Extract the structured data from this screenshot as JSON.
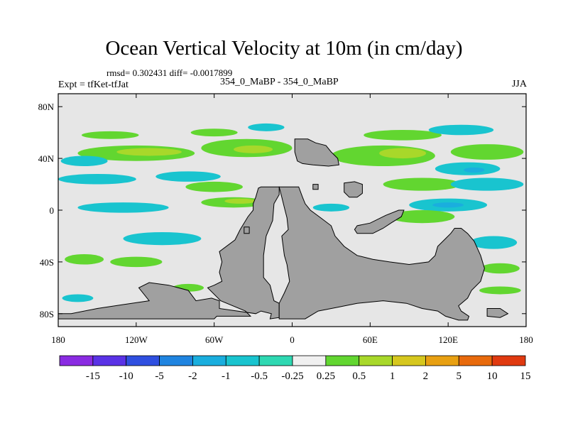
{
  "title": "Ocean Vertical Velocity at 10m (in cm/day)",
  "stats": "rmsd= 0.302431  diff= -0.0017899",
  "left_label": "Expt = tfKet-tfJat",
  "center_label": "354_0_MaBP - 354_0_MaBP",
  "right_label": "JJA",
  "colors": {
    "land": "#a0a0a0",
    "ocean_neutral": "#e6e6e6",
    "map_border": "#000000"
  },
  "map_data": {
    "lon_range": [
      -180,
      180
    ],
    "lat_range": [
      -90,
      90
    ],
    "x_ticks": [
      {
        "value": -180,
        "label": "180"
      },
      {
        "value": -120,
        "label": "120W"
      },
      {
        "value": -60,
        "label": "60W"
      },
      {
        "value": 0,
        "label": "0"
      },
      {
        "value": 60,
        "label": "60E"
      },
      {
        "value": 120,
        "label": "120E"
      },
      {
        "value": 180,
        "label": "180"
      }
    ],
    "y_ticks": [
      {
        "value": 80,
        "label": "80N"
      },
      {
        "value": 40,
        "label": "40N"
      },
      {
        "value": 0,
        "label": "0"
      },
      {
        "value": -40,
        "label": "40S"
      },
      {
        "value": -80,
        "label": "80S"
      }
    ],
    "land": [
      {
        "name": "continent-americas",
        "points": [
          [
            -26,
            17
          ],
          [
            -24,
            18
          ],
          [
            -10,
            18
          ],
          [
            -10,
            12
          ],
          [
            -14,
            5
          ],
          [
            -15,
            -8
          ],
          [
            -20,
            -20
          ],
          [
            -22,
            -35
          ],
          [
            -22,
            -52
          ],
          [
            -17,
            -58
          ],
          [
            -16,
            -62
          ],
          [
            -14,
            -70
          ],
          [
            -10,
            -72
          ],
          [
            -10,
            -83
          ],
          [
            -17,
            -84
          ],
          [
            -16,
            -80
          ],
          [
            -24,
            -78
          ],
          [
            -28,
            -80
          ],
          [
            -56,
            -76
          ],
          [
            -56,
            -70
          ],
          [
            -62,
            -68
          ],
          [
            -74,
            -70
          ],
          [
            -80,
            -62
          ],
          [
            -95,
            -58
          ],
          [
            -110,
            -56
          ],
          [
            -118,
            -60
          ],
          [
            -110,
            -70
          ],
          [
            -130,
            -73
          ],
          [
            -150,
            -76
          ],
          [
            -170,
            -80
          ],
          [
            -180,
            -80
          ],
          [
            -180,
            -84
          ],
          [
            -60,
            -84
          ],
          [
            -58,
            -82
          ],
          [
            -32,
            -82
          ],
          [
            -36,
            -78
          ],
          [
            -55,
            -70
          ],
          [
            -65,
            -60
          ],
          [
            -60,
            -58
          ],
          [
            -54,
            -55
          ],
          [
            -56,
            -48
          ],
          [
            -54,
            -40
          ],
          [
            -56,
            -32
          ],
          [
            -44,
            -23
          ],
          [
            -40,
            -15
          ],
          [
            -34,
            -5
          ],
          [
            -30,
            0
          ],
          [
            -30,
            5
          ],
          [
            -28,
            10
          ]
        ]
      },
      {
        "name": "continent-africa-asia",
        "points": [
          [
            -10,
            18
          ],
          [
            5,
            18
          ],
          [
            8,
            10
          ],
          [
            10,
            5
          ],
          [
            14,
            0
          ],
          [
            22,
            -6
          ],
          [
            30,
            -12
          ],
          [
            33,
            -20
          ],
          [
            40,
            -28
          ],
          [
            50,
            -35
          ],
          [
            62,
            -38
          ],
          [
            75,
            -40
          ],
          [
            90,
            -42
          ],
          [
            105,
            -40
          ],
          [
            110,
            -35
          ],
          [
            112,
            -28
          ],
          [
            118,
            -22
          ],
          [
            122,
            -18
          ],
          [
            125,
            -14
          ],
          [
            130,
            -14
          ],
          [
            135,
            -18
          ],
          [
            140,
            -24
          ],
          [
            145,
            -35
          ],
          [
            148,
            -45
          ],
          [
            145,
            -55
          ],
          [
            138,
            -62
          ],
          [
            135,
            -68
          ],
          [
            128,
            -74
          ],
          [
            130,
            -78
          ],
          [
            136,
            -82
          ],
          [
            135,
            -85
          ],
          [
            128,
            -85
          ],
          [
            118,
            -82
          ],
          [
            112,
            -78
          ],
          [
            100,
            -76
          ],
          [
            88,
            -72
          ],
          [
            70,
            -70
          ],
          [
            50,
            -72
          ],
          [
            35,
            -75
          ],
          [
            20,
            -78
          ],
          [
            10,
            -84
          ],
          [
            -10,
            -84
          ],
          [
            -10,
            -72
          ],
          [
            -6,
            -64
          ],
          [
            -2,
            -55
          ],
          [
            -4,
            -42
          ],
          [
            -6,
            -35
          ],
          [
            -8,
            -20
          ],
          [
            -3,
            -15
          ],
          [
            -4,
            -6
          ],
          [
            -6,
            2
          ],
          [
            -8,
            10
          ]
        ]
      },
      {
        "name": "continent-north",
        "points": [
          [
            2,
            55
          ],
          [
            12,
            55
          ],
          [
            18,
            52
          ],
          [
            26,
            50
          ],
          [
            30,
            45
          ],
          [
            35,
            40
          ],
          [
            36,
            35
          ],
          [
            28,
            34
          ],
          [
            16,
            35
          ],
          [
            8,
            36
          ],
          [
            4,
            38
          ],
          [
            2,
            45
          ]
        ]
      },
      {
        "name": "island-east",
        "points": [
          [
            40,
            21
          ],
          [
            48,
            22
          ],
          [
            54,
            20
          ],
          [
            54,
            13
          ],
          [
            50,
            10
          ],
          [
            44,
            10
          ],
          [
            40,
            14
          ]
        ]
      },
      {
        "name": "island-equatorial",
        "points": [
          [
            50,
            -12
          ],
          [
            60,
            -10
          ],
          [
            72,
            -4
          ],
          [
            82,
            0
          ],
          [
            86,
            0
          ],
          [
            84,
            -5
          ],
          [
            76,
            -10
          ],
          [
            70,
            -14
          ],
          [
            62,
            -18
          ],
          [
            50,
            -18
          ],
          [
            48,
            -15
          ]
        ]
      },
      {
        "name": "island-small-a",
        "points": [
          [
            16,
            20
          ],
          [
            20,
            20
          ],
          [
            20,
            16
          ],
          [
            16,
            16
          ]
        ]
      },
      {
        "name": "island-small-b",
        "points": [
          [
            -37,
            -13
          ],
          [
            -33,
            -13
          ],
          [
            -33,
            -18
          ],
          [
            -37,
            -18
          ]
        ]
      },
      {
        "name": "island-far-east",
        "points": [
          [
            150,
            -76
          ],
          [
            160,
            -76
          ],
          [
            166,
            -80
          ],
          [
            160,
            -83
          ],
          [
            150,
            -82
          ]
        ]
      }
    ],
    "patches": [
      {
        "name": "band-north-a",
        "value": 0.5,
        "cx": -140,
        "cy": 58,
        "rx": 22,
        "ry": 3
      },
      {
        "name": "band-north-b",
        "value": 0.5,
        "cx": -60,
        "cy": 60,
        "rx": 18,
        "ry": 3
      },
      {
        "name": "band-north-c",
        "value": 0.5,
        "cx": 85,
        "cy": 58,
        "rx": 30,
        "ry": 4
      },
      {
        "name": "band-north-d",
        "value": -0.5,
        "cx": 130,
        "cy": 62,
        "rx": 25,
        "ry": 4
      },
      {
        "name": "band-north-e",
        "value": -0.5,
        "cx": -20,
        "cy": 64,
        "rx": 14,
        "ry": 3
      },
      {
        "name": "band-midlat-1",
        "value": 0.5,
        "cx": -120,
        "cy": 44,
        "rx": 45,
        "ry": 6
      },
      {
        "name": "band-midlat-2",
        "value": 1,
        "cx": -110,
        "cy": 45,
        "rx": 25,
        "ry": 3
      },
      {
        "name": "band-midlat-3",
        "value": 0.5,
        "cx": -35,
        "cy": 48,
        "rx": 35,
        "ry": 7
      },
      {
        "name": "band-midlat-4",
        "value": 1,
        "cx": -30,
        "cy": 47,
        "rx": 15,
        "ry": 3
      },
      {
        "name": "band-midlat-5",
        "value": 0.5,
        "cx": 70,
        "cy": 42,
        "rx": 40,
        "ry": 8
      },
      {
        "name": "band-midlat-6",
        "value": 1,
        "cx": 85,
        "cy": 44,
        "rx": 18,
        "ry": 4
      },
      {
        "name": "band-midlat-7",
        "value": 0.5,
        "cx": 150,
        "cy": 45,
        "rx": 28,
        "ry": 6
      },
      {
        "name": "band-midlat-8",
        "value": -0.5,
        "cx": -160,
        "cy": 38,
        "rx": 18,
        "ry": 4
      },
      {
        "name": "band-midlat-9",
        "value": -0.5,
        "cx": 135,
        "cy": 32,
        "rx": 25,
        "ry": 5
      },
      {
        "name": "band-midlat-10",
        "value": -1,
        "cx": 140,
        "cy": 31,
        "rx": 8,
        "ry": 2
      },
      {
        "name": "band-subtrop-1",
        "value": -0.5,
        "cx": -150,
        "cy": 24,
        "rx": 30,
        "ry": 4
      },
      {
        "name": "band-subtrop-2",
        "value": -0.5,
        "cx": -80,
        "cy": 26,
        "rx": 25,
        "ry": 4
      },
      {
        "name": "band-subtrop-3",
        "value": 0.5,
        "cx": -60,
        "cy": 18,
        "rx": 22,
        "ry": 4
      },
      {
        "name": "band-subtrop-4",
        "value": 0.5,
        "cx": 100,
        "cy": 20,
        "rx": 30,
        "ry": 5
      },
      {
        "name": "band-subtrop-5",
        "value": -0.5,
        "cx": 150,
        "cy": 20,
        "rx": 28,
        "ry": 5
      },
      {
        "name": "band-equator-1",
        "value": 0.5,
        "cx": -45,
        "cy": 6,
        "rx": 25,
        "ry": 4
      },
      {
        "name": "band-equator-2",
        "value": 1,
        "cx": -40,
        "cy": 7,
        "rx": 12,
        "ry": 2
      },
      {
        "name": "band-equator-3",
        "value": -0.5,
        "cx": -130,
        "cy": 2,
        "rx": 35,
        "ry": 4
      },
      {
        "name": "band-equator-4",
        "value": -0.5,
        "cx": 120,
        "cy": 4,
        "rx": 30,
        "ry": 5
      },
      {
        "name": "band-equator-5",
        "value": -1,
        "cx": 120,
        "cy": 4,
        "rx": 12,
        "ry": 2
      },
      {
        "name": "band-equator-6",
        "value": -0.5,
        "cx": 30,
        "cy": 2,
        "rx": 14,
        "ry": 3
      },
      {
        "name": "band-equator-7",
        "value": 0.5,
        "cx": 100,
        "cy": -5,
        "rx": 25,
        "ry": 5
      },
      {
        "name": "band-south-1",
        "value": -0.5,
        "cx": -100,
        "cy": -22,
        "rx": 30,
        "ry": 5
      },
      {
        "name": "band-south-2",
        "value": 0.5,
        "cx": -160,
        "cy": -38,
        "rx": 15,
        "ry": 4
      },
      {
        "name": "band-south-3",
        "value": 0.5,
        "cx": -120,
        "cy": -40,
        "rx": 20,
        "ry": 4
      },
      {
        "name": "band-south-4",
        "value": -0.5,
        "cx": 155,
        "cy": -25,
        "rx": 18,
        "ry": 5
      },
      {
        "name": "band-south-5",
        "value": 0.5,
        "cx": 160,
        "cy": -45,
        "rx": 15,
        "ry": 4
      },
      {
        "name": "band-south-6",
        "value": 0.5,
        "cx": 40,
        "cy": -48,
        "rx": 15,
        "ry": 3
      },
      {
        "name": "band-south-7",
        "value": -0.5,
        "cx": -165,
        "cy": -68,
        "rx": 12,
        "ry": 3
      },
      {
        "name": "band-south-8",
        "value": 0.5,
        "cx": 160,
        "cy": -62,
        "rx": 16,
        "ry": 3
      },
      {
        "name": "band-south-9",
        "value": 0.5,
        "cx": -80,
        "cy": -60,
        "rx": 12,
        "ry": 3
      }
    ]
  },
  "colorbar": {
    "labels": [
      "-15",
      "-10",
      "-5",
      "-2",
      "-1",
      "-0.5",
      "-0.25",
      "0.25",
      "0.5",
      "1",
      "2",
      "5",
      "10",
      "15"
    ],
    "colors": [
      "#8a2be2",
      "#5a32e6",
      "#2f4fe0",
      "#1f84e0",
      "#1aaede",
      "#19c4cf",
      "#2ed8b2",
      "#f0f0f0",
      "#62d630",
      "#a8d82a",
      "#d6c71e",
      "#e8a012",
      "#e86a0c",
      "#e03a10"
    ]
  }
}
